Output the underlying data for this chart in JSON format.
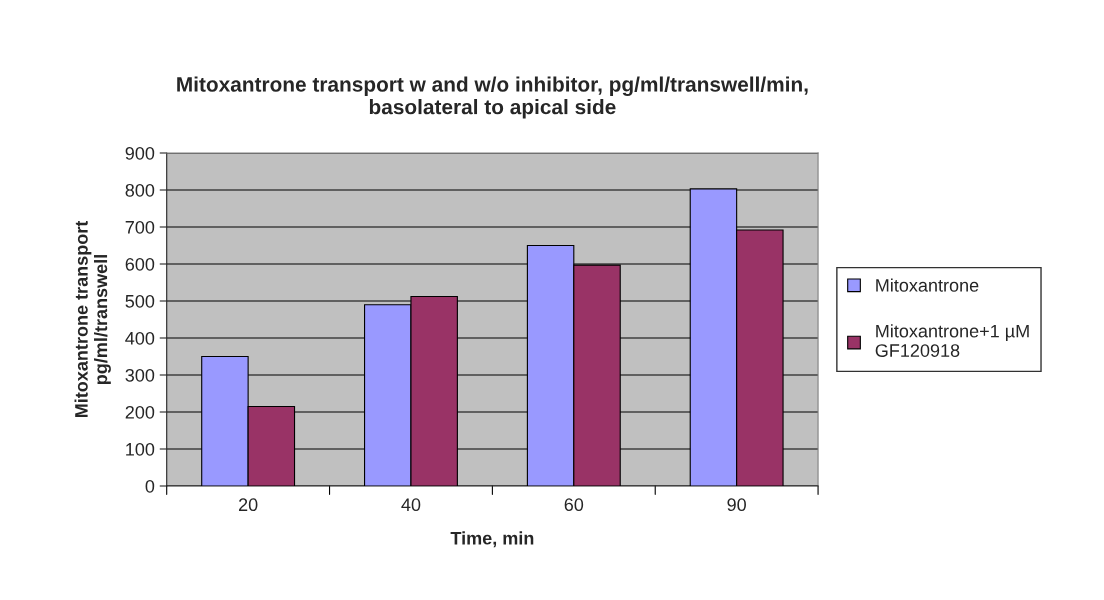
{
  "chart_data": {
    "type": "bar",
    "title": "Mitoxantrone transport w and w/o inhibitor, pg/ml/transwell/min,\nbasolateral to apical side",
    "xlabel": "Time, min",
    "ylabel": "Mitoxantrone transport\npg/ml/transwell",
    "categories": [
      "20",
      "40",
      "60",
      "90"
    ],
    "series": [
      {
        "name": "Mitoxantrone",
        "color": "#9999ff",
        "values": [
          350,
          490,
          650,
          803
        ]
      },
      {
        "name": "Mitoxantrone+1 µM\nGF120918",
        "color": "#993366",
        "values": [
          215,
          512,
          597,
          692
        ]
      }
    ],
    "ylim": [
      0,
      900
    ],
    "yticks": [
      0,
      100,
      200,
      300,
      400,
      500,
      600,
      700,
      800,
      900
    ],
    "grid": "y",
    "legend": "right"
  }
}
